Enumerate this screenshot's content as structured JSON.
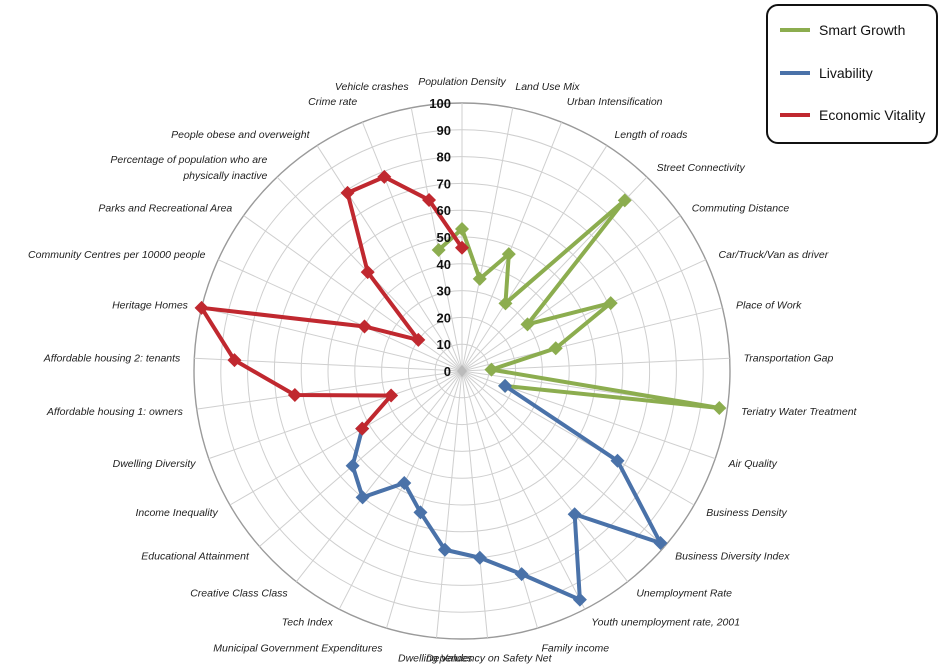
{
  "chart_data": {
    "type": "radar",
    "rlim": [
      0,
      100
    ],
    "rticks": [
      0,
      10,
      20,
      30,
      40,
      50,
      60,
      70,
      80,
      90,
      100
    ],
    "spokes": [
      "Population Density",
      "Land Use Mix",
      "Urban Intensification",
      "Length of roads",
      "Street Connectivity",
      "Commuting Distance",
      "Car/Truck/Van as driver",
      "Place of Work",
      "Transportation Gap",
      "Teriatry Water Treatment",
      "Air Quality",
      "Business  Density",
      "Business Diversity Index",
      "Unemployment Rate",
      "Youth unemployment rate, 2001",
      "Family income",
      "Dependency on Safety Net",
      "Dwelling Values",
      "Municipal Government Expenditures",
      "Tech Index",
      "Creative Class Class",
      "Educational Attainment",
      "Income Inequality",
      "Dwelling Diversity",
      "Affordable housing 1: owners",
      "Affordable housing 2: tenants",
      "Heritage Homes",
      "Community Centres per 10000 people",
      "Parks and Recreational Area",
      "Percentage of population who are physically inactive",
      "People obese and overweight",
      "Crime rate",
      "Vehicle crashes"
    ],
    "series": [
      {
        "name": "Smart Growth",
        "color": "#8cad4f",
        "points": [
          {
            "spoke": "Vehicle crashes",
            "value": 46
          },
          {
            "spoke": "Population Density",
            "value": 53
          },
          {
            "spoke": "Land Use Mix",
            "value": 35
          },
          {
            "spoke": "Urban Intensification",
            "value": 47
          },
          {
            "spoke": "Length of roads",
            "value": 30
          },
          {
            "spoke": "Street Connectivity",
            "value": 88
          },
          {
            "spoke": "Commuting Distance",
            "value": 30
          },
          {
            "spoke": "Car/Truck/Van as driver",
            "value": 61
          },
          {
            "spoke": "Place of Work",
            "value": 36
          },
          {
            "spoke": "Transportation Gap",
            "value": 11
          },
          {
            "spoke": "Teriatry Water Treatment",
            "value": 97
          },
          {
            "spoke": "Air Quality",
            "value": 17
          }
        ]
      },
      {
        "name": "Livability",
        "color": "#4a72a9",
        "points": [
          {
            "spoke": "Air Quality",
            "value": 17
          },
          {
            "spoke": "Business  Density",
            "value": 67
          },
          {
            "spoke": "Business Diversity Index",
            "value": 98
          },
          {
            "spoke": "Unemployment Rate",
            "value": 68
          },
          {
            "spoke": "Youth unemployment rate, 2001",
            "value": 96
          },
          {
            "spoke": "Family income",
            "value": 79
          },
          {
            "spoke": "Dependency on Safety Net",
            "value": 70
          },
          {
            "spoke": "Dwelling Values",
            "value": 67
          },
          {
            "spoke": "Municipal Government Expenditures",
            "value": 55
          },
          {
            "spoke": "Tech Index",
            "value": 47
          },
          {
            "spoke": "Creative Class Class",
            "value": 60
          },
          {
            "spoke": "Educational Attainment",
            "value": 54
          },
          {
            "spoke": "Income Inequality",
            "value": 43
          }
        ]
      },
      {
        "name": "Economic Vitality",
        "color": "#c0282f",
        "points": [
          {
            "spoke": "Income Inequality",
            "value": 43
          },
          {
            "spoke": "Dwelling Diversity",
            "value": 28
          },
          {
            "spoke": "Affordable housing 1: owners",
            "value": 63
          },
          {
            "spoke": "Affordable housing 2: tenants",
            "value": 85
          },
          {
            "spoke": "Heritage Homes",
            "value": 100
          },
          {
            "spoke": "Community Centres per 10000 people",
            "value": 40
          },
          {
            "spoke": "Parks and Recreational Area",
            "value": 20
          },
          {
            "spoke": "Percentage of population who are physically inactive",
            "value": 51
          },
          {
            "spoke": "People obese and overweight",
            "value": 79
          },
          {
            "spoke": "Crime rate",
            "value": 78
          },
          {
            "spoke": "Vehicle crashes",
            "value": 65
          },
          {
            "spoke": "Population Density",
            "value": 46
          }
        ]
      }
    ],
    "legend": {
      "position": "top-right",
      "entries": [
        {
          "name": "Smart Growth",
          "color": "#8cad4f"
        },
        {
          "name": "Livability",
          "color": "#4a72a9"
        },
        {
          "name": "Economic Vitality",
          "color": "#c0282f"
        }
      ]
    }
  }
}
